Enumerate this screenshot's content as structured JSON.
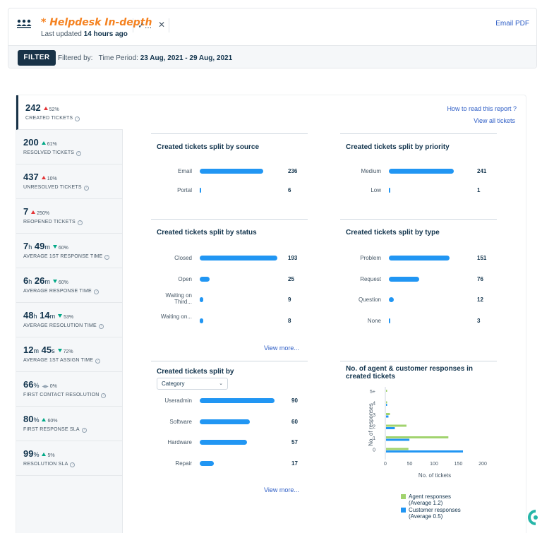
{
  "header": {
    "title": "* Helpdesk In-depth",
    "updated_prefix": "Last updated ",
    "updated_value": "14 hours ago",
    "check_glyph": "✓...",
    "close_glyph": "✕",
    "email_pdf": "Email PDF",
    "filter_label": "FILTER",
    "filtered_by": "Filtered by:",
    "time_period_label": "Time Period:",
    "time_period_value": "23 Aug, 2021 - 29 Aug, 2021"
  },
  "links": {
    "how_to_read": "How to read this report ?",
    "view_all": "View all tickets"
  },
  "metrics": [
    {
      "value": "242",
      "change": "52%",
      "trend": "up-red",
      "label": "CREATED TICKETS"
    },
    {
      "value": "200",
      "change": "61%",
      "trend": "up-green",
      "label": "RESOLVED TICKETS"
    },
    {
      "value": "437",
      "change": "10%",
      "trend": "up-red",
      "label": "UNRESOLVED TICKETS"
    },
    {
      "value": "7",
      "change": "250%",
      "trend": "up-red",
      "label": "REOPENED TICKETS"
    },
    {
      "v1": "7",
      "u1": "h",
      "v2": "49",
      "u2": "m",
      "change": "60%",
      "trend": "down-green",
      "label": "AVERAGE 1ST RESPONSE TIME"
    },
    {
      "v1": "6",
      "u1": "h",
      "v2": "26",
      "u2": "m",
      "change": "60%",
      "trend": "down-green",
      "label": "AVERAGE RESPONSE TIME"
    },
    {
      "v1": "48",
      "u1": "h",
      "v2": "14",
      "u2": "m",
      "change": "53%",
      "trend": "down-green",
      "label": "AVERAGE RESOLUTION TIME"
    },
    {
      "v1": "12",
      "u1": "m",
      "v2": "45",
      "u2": "s",
      "change": "72%",
      "trend": "down-green",
      "label": "AVERAGE 1ST ASSIGN TIME"
    },
    {
      "v1": "66",
      "u1": "%",
      "change": "0%",
      "trend": "neutral",
      "label": "FIRST CONTACT RESOLUTION"
    },
    {
      "v1": "80",
      "u1": "%",
      "change": "60%",
      "trend": "up-green",
      "label": "FIRST RESPONSE SLA"
    },
    {
      "v1": "99",
      "u1": "%",
      "change": "5%",
      "trend": "up-green",
      "label": "RESOLUTION SLA"
    }
  ],
  "panels": {
    "source": {
      "title": "Created tickets split by source",
      "rows": [
        {
          "label": "Email",
          "value": 236
        },
        {
          "label": "Portal",
          "value": 6
        }
      ]
    },
    "priority": {
      "title": "Created tickets split by priority",
      "rows": [
        {
          "label": "Medium",
          "value": 241
        },
        {
          "label": "Low",
          "value": 1
        }
      ]
    },
    "status": {
      "title": "Created tickets split by status",
      "rows": [
        {
          "label": "Closed",
          "value": 193
        },
        {
          "label": "Open",
          "value": 25
        },
        {
          "label": "Waiting on Third...",
          "value": 9
        },
        {
          "label": "Waiting on...",
          "value": 8
        }
      ],
      "view_more": "View more..."
    },
    "type": {
      "title": "Created tickets split by type",
      "rows": [
        {
          "label": "Problem",
          "value": 151
        },
        {
          "label": "Request",
          "value": 76
        },
        {
          "label": "Question",
          "value": 12
        },
        {
          "label": "None",
          "value": 3
        }
      ]
    },
    "category": {
      "title": "Created tickets split by",
      "select_value": "Category",
      "rows": [
        {
          "label": "Useradmin",
          "value": 90
        },
        {
          "label": "Software",
          "value": 60
        },
        {
          "label": "Hardware",
          "value": 57
        },
        {
          "label": "Repair",
          "value": 17
        }
      ],
      "view_more": "View more..."
    }
  },
  "chart_data": {
    "type": "bar",
    "orientation": "horizontal",
    "title": "No. of agent & customer responses in created tickets",
    "categories": [
      "5+",
      "4",
      "3",
      "2",
      "1",
      "0"
    ],
    "series": [
      {
        "name": "Agent responses (Average 1.2)",
        "color": "#a1d36e",
        "values": [
          1,
          2,
          8,
          42,
          128,
          46
        ]
      },
      {
        "name": "Customer responses (Average 0.5)",
        "color": "#2196f3",
        "values": [
          0,
          1,
          5,
          18,
          48,
          158
        ]
      }
    ],
    "xlabel": "No. of tickets",
    "ylabel": "No. of responses",
    "xticks": [
      0,
      50,
      100,
      150,
      200
    ],
    "xlim": [
      0,
      200
    ],
    "legend_position": "bottom",
    "legend": [
      {
        "line1": "Agent responses",
        "line2": "(Average 1.2)"
      },
      {
        "line1": "Customer responses",
        "line2": "(Average 0.5)"
      }
    ]
  }
}
